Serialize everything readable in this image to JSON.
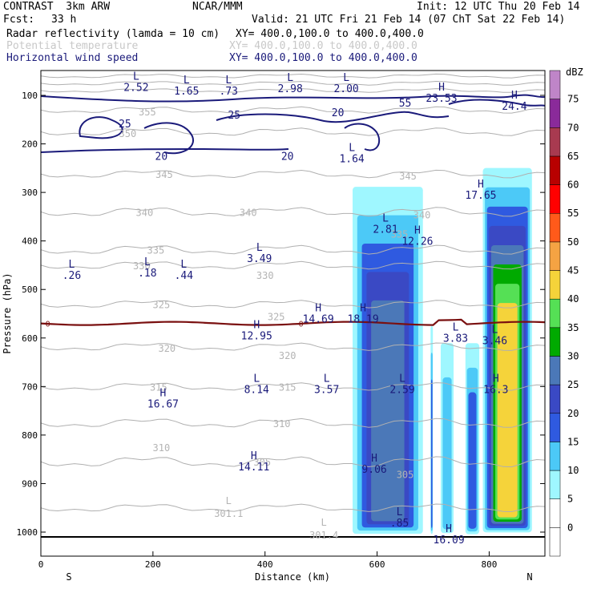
{
  "header": {
    "model": "CONTRAST  3km ARW",
    "org": "NCAR/MMM",
    "init": "Init: 12 UTC Thu 20 Feb 14",
    "fcst_label": "Fcst:",
    "fcst_value": "33 h",
    "valid": "Valid: 21 UTC Fri 21 Feb 14 (07 ChT Sat 22 Feb 14)",
    "fields": [
      {
        "name": "Radar reflectivity (lamda = 10 cm)",
        "xy": "XY= 400.0,100.0 to 400.0,400.0",
        "color": "#000000"
      },
      {
        "name": "Potential temperature",
        "xy": "XY= 400.0,100.0 to 400.0,400.0",
        "color": "#c8c8c8"
      },
      {
        "name": "Horizontal wind speed",
        "xy": "XY= 400.0,100.0 to 400.0,400.0",
        "color": "#1a1a7a"
      }
    ]
  },
  "chart_data": {
    "type": "heatmap",
    "xlabel": "Distance (km)",
    "ylabel": "Pressure (hPa)",
    "xlim": [
      0,
      900
    ],
    "ylim": [
      1050,
      50
    ],
    "x_ticks": [
      0,
      200,
      400,
      600,
      800
    ],
    "y_ticks": [
      100,
      200,
      300,
      400,
      500,
      600,
      700,
      800,
      900,
      1000
    ],
    "x_end_labels": {
      "left": "S",
      "right": "N"
    },
    "colorbar": {
      "unit": "dBZ",
      "levels": [
        0,
        5,
        10,
        15,
        20,
        25,
        30,
        35,
        40,
        45,
        50,
        55,
        60,
        65,
        70,
        75
      ],
      "colors": [
        "#ffffff",
        "#9ff7ff",
        "#4cc9f7",
        "#2f5ae0",
        "#3a49c4",
        "#4b78b8",
        "#00aa00",
        "#55e055",
        "#f5d33a",
        "#f5a343",
        "#ff5a1a",
        "#ff0000",
        "#b80000",
        "#a83a50",
        "#8a2a9a",
        "#bf85c8"
      ]
    },
    "reflectivity_columns": [
      {
        "x0": 548,
        "x1": 690,
        "p_top": 230,
        "p_bot": 1010,
        "peak_dbz": 30
      },
      {
        "x0": 695,
        "x1": 700,
        "p_top": 520,
        "p_bot": 1010,
        "peak_dbz": 20
      },
      {
        "x0": 710,
        "x1": 740,
        "p_top": 540,
        "p_bot": 1010,
        "peak_dbz": 15
      },
      {
        "x0": 755,
        "x1": 785,
        "p_top": 560,
        "p_bot": 1010,
        "peak_dbz": 20
      },
      {
        "x0": 785,
        "x1": 880,
        "p_top": 210,
        "p_bot": 1005,
        "peak_dbz": 45
      }
    ],
    "theta_labels": [
      {
        "x": 190,
        "p": 133,
        "text": "355"
      },
      {
        "x": 155,
        "p": 178,
        "text": "350"
      },
      {
        "x": 220,
        "p": 262,
        "text": "345"
      },
      {
        "x": 185,
        "p": 340,
        "text": "340"
      },
      {
        "x": 370,
        "p": 340,
        "text": "340"
      },
      {
        "x": 205,
        "p": 418,
        "text": "335"
      },
      {
        "x": 180,
        "p": 450,
        "text": "330"
      },
      {
        "x": 400,
        "p": 470,
        "text": "330"
      },
      {
        "x": 215,
        "p": 530,
        "text": "325"
      },
      {
        "x": 420,
        "p": 555,
        "text": "325"
      },
      {
        "x": 225,
        "p": 620,
        "text": "320"
      },
      {
        "x": 440,
        "p": 635,
        "text": "320"
      },
      {
        "x": 210,
        "p": 700,
        "text": "315"
      },
      {
        "x": 440,
        "p": 700,
        "text": "315"
      },
      {
        "x": 430,
        "p": 775,
        "text": "310"
      },
      {
        "x": 215,
        "p": 825,
        "text": "310"
      },
      {
        "x": 395,
        "p": 855,
        "text": "305"
      },
      {
        "x": 650,
        "p": 880,
        "text": "305"
      },
      {
        "x": 640,
        "p": 385,
        "text": "335"
      },
      {
        "x": 680,
        "p": 345,
        "text": "340"
      },
      {
        "x": 655,
        "p": 265,
        "text": "345"
      }
    ],
    "theta_extrema": [
      {
        "x": 335,
        "p": 955,
        "text": "301.1",
        "type": "L"
      },
      {
        "x": 505,
        "p": 1000,
        "text": "301.4",
        "type": "L"
      }
    ],
    "wind_labels": [
      {
        "x": 150,
        "p": 158,
        "text": "25"
      },
      {
        "x": 215,
        "p": 225,
        "text": "20"
      },
      {
        "x": 345,
        "p": 140,
        "text": "25"
      },
      {
        "x": 530,
        "p": 135,
        "text": "20"
      },
      {
        "x": 440,
        "p": 225,
        "text": "20"
      },
      {
        "x": 650,
        "p": 115,
        "text": "55"
      }
    ],
    "wind_extrema": [
      {
        "type": "L",
        "x": 170,
        "p": 68,
        "value": "2.52"
      },
      {
        "type": "L",
        "x": 260,
        "p": 75,
        "value": "1.65"
      },
      {
        "type": "L",
        "x": 335,
        "p": 75,
        "value": ".73"
      },
      {
        "type": "L",
        "x": 445,
        "p": 70,
        "value": "2.98"
      },
      {
        "type": "L",
        "x": 545,
        "p": 70,
        "value": "2.00"
      },
      {
        "type": "H",
        "x": 715,
        "p": 90,
        "value": "23.53"
      },
      {
        "type": "H",
        "x": 845,
        "p": 107,
        "value": "24.4"
      },
      {
        "type": "L",
        "x": 555,
        "p": 215,
        "value": "1.64"
      },
      {
        "type": "H",
        "x": 785,
        "p": 290,
        "value": "17.65"
      },
      {
        "type": "L",
        "x": 615,
        "p": 360,
        "value": "2.81"
      },
      {
        "type": "H",
        "x": 672,
        "p": 385,
        "value": "12.26"
      },
      {
        "type": "L",
        "x": 55,
        "p": 455,
        "value": ".26"
      },
      {
        "type": "L",
        "x": 190,
        "p": 450,
        "value": ".18"
      },
      {
        "type": "L",
        "x": 255,
        "p": 455,
        "value": ".44"
      },
      {
        "type": "L",
        "x": 390,
        "p": 420,
        "value": "3.49"
      },
      {
        "type": "H",
        "x": 495,
        "p": 545,
        "value": "14.69"
      },
      {
        "type": "H",
        "x": 575,
        "p": 545,
        "value": "18.19"
      },
      {
        "type": "H",
        "x": 385,
        "p": 580,
        "value": "12.95"
      },
      {
        "type": "L",
        "x": 740,
        "p": 585,
        "value": "3.83"
      },
      {
        "type": "L",
        "x": 810,
        "p": 590,
        "value": "3.46"
      },
      {
        "type": "L",
        "x": 385,
        "p": 690,
        "value": "8.14"
      },
      {
        "type": "L",
        "x": 510,
        "p": 690,
        "value": "3.57"
      },
      {
        "type": "L",
        "x": 645,
        "p": 690,
        "value": "2.59"
      },
      {
        "type": "H",
        "x": 812,
        "p": 690,
        "value": "16.3"
      },
      {
        "type": "H",
        "x": 218,
        "p": 720,
        "value": "16.67"
      },
      {
        "type": "H",
        "x": 380,
        "p": 850,
        "value": "14.11"
      },
      {
        "type": "H",
        "x": 595,
        "p": 855,
        "value": "9.06"
      },
      {
        "type": "L",
        "x": 640,
        "p": 965,
        "value": ".85"
      },
      {
        "type": "H",
        "x": 728,
        "p": 1000,
        "value": "16.09"
      }
    ],
    "freezing_level": {
      "label": "0",
      "p": 570
    }
  }
}
